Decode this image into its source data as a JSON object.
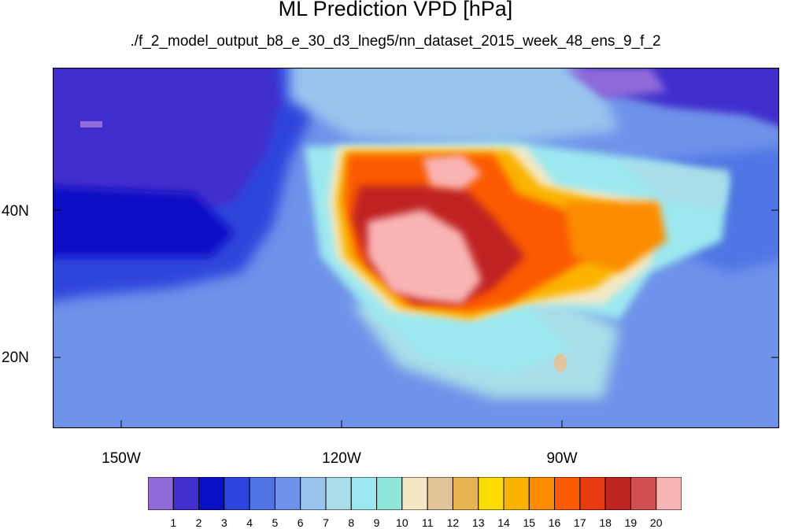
{
  "title": "ML Prediction VPD [hPa]",
  "subtitle": "./f_2_model_output_b8_e_30_d3_lneg5/nn_dataset_2015_week_48_ens_9_f_2",
  "axes": {
    "lat_labels": [
      "40N",
      "20N"
    ],
    "lon_labels": [
      "150W",
      "120W",
      "90W"
    ]
  },
  "colorbar": {
    "colors": [
      "#8f6bd9",
      "#3f2fcc",
      "#0a10c6",
      "#2d45dc",
      "#4f74e4",
      "#6f92ea",
      "#98c4ee",
      "#a9dde8",
      "#9ce8f0",
      "#90e6d8",
      "#f4e8c4",
      "#e2c49a",
      "#e8b450",
      "#fadc00",
      "#fbb300",
      "#fb8c00",
      "#fb5a00",
      "#e83a10",
      "#bf2424",
      "#d05050",
      "#f9b4b4"
    ],
    "labels": [
      "1",
      "2",
      "3",
      "4",
      "5",
      "6",
      "7",
      "8",
      "9",
      "10",
      "11",
      "12",
      "13",
      "14",
      "15",
      "16",
      "17",
      "18",
      "19",
      "20"
    ]
  }
}
